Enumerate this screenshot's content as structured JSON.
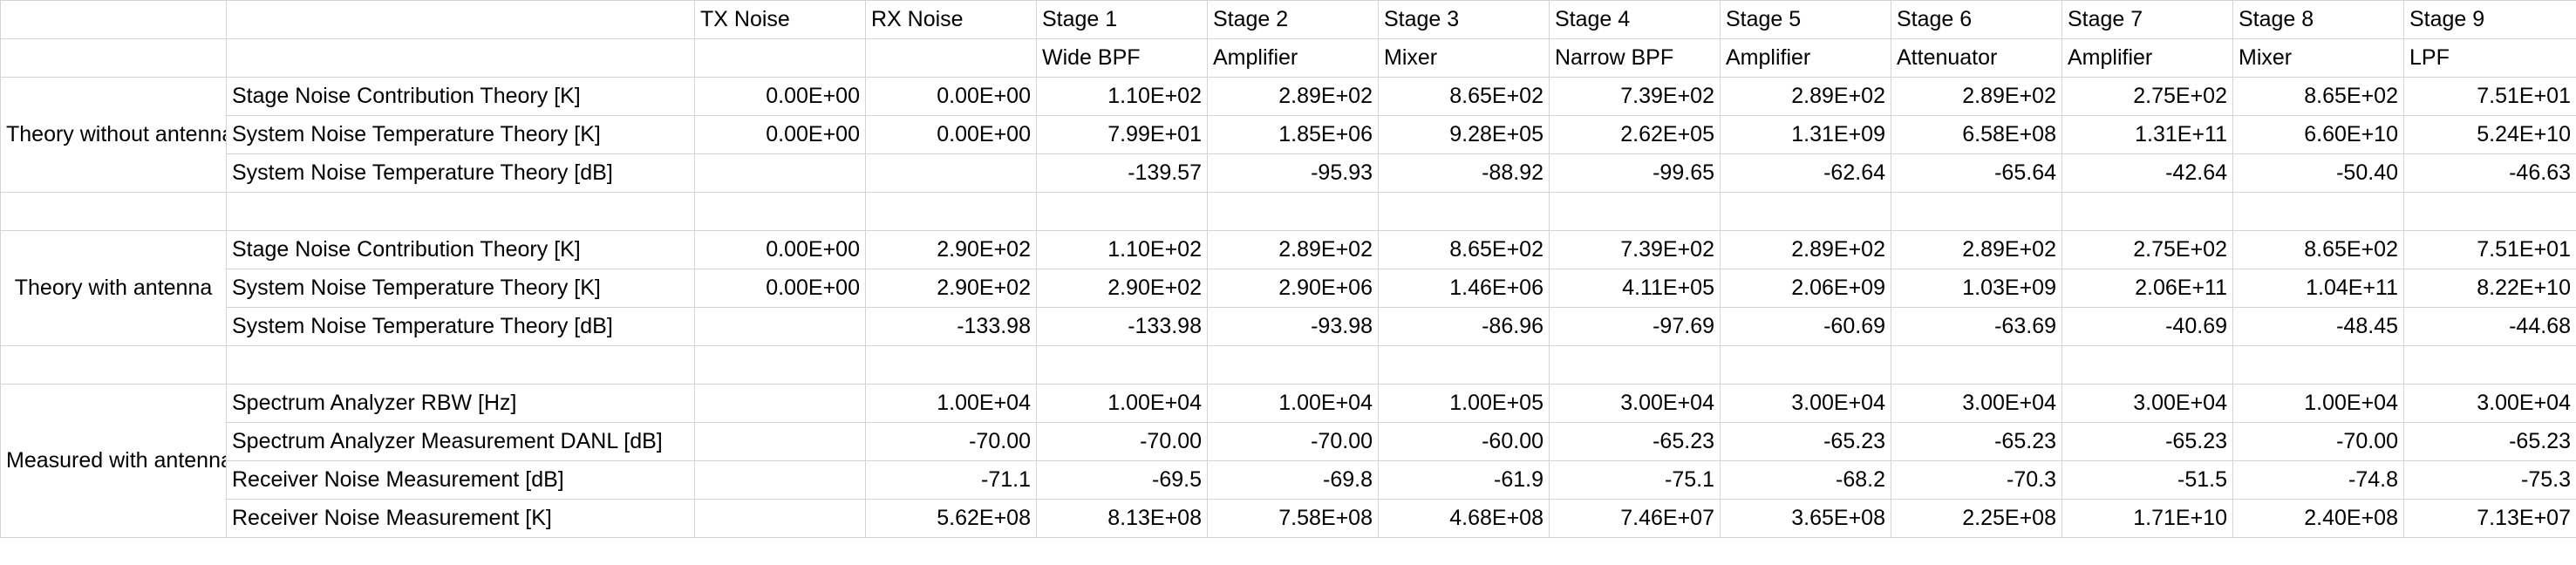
{
  "header": {
    "stages": [
      "TX Noise",
      "RX Noise",
      "Stage 1",
      "Stage 2",
      "Stage 3",
      "Stage 4",
      "Stage 5",
      "Stage 6",
      "Stage 7",
      "Stage 8",
      "Stage 9"
    ],
    "components": [
      "",
      "",
      "Wide BPF",
      "Amplifier",
      "Mixer",
      "Narrow BPF",
      "Amplifier",
      "Attenuator",
      "Amplifier",
      "Mixer",
      "LPF"
    ]
  },
  "sections": [
    {
      "group": "Theory without antenna",
      "rows": [
        {
          "label": "Stage Noise Contribution Theory [K]",
          "values": [
            "0.00E+00",
            "0.00E+00",
            "1.10E+02",
            "2.89E+02",
            "8.65E+02",
            "7.39E+02",
            "2.89E+02",
            "2.89E+02",
            "2.75E+02",
            "8.65E+02",
            "7.51E+01"
          ]
        },
        {
          "label": "System Noise Temperature Theory [K]",
          "values": [
            "0.00E+00",
            "0.00E+00",
            "7.99E+01",
            "1.85E+06",
            "9.28E+05",
            "2.62E+05",
            "1.31E+09",
            "6.58E+08",
            "1.31E+11",
            "6.60E+10",
            "5.24E+10"
          ]
        },
        {
          "label": "System Noise Temperature Theory [dB]",
          "values": [
            "",
            "",
            "-139.57",
            "-95.93",
            "-88.92",
            "-99.65",
            "-62.64",
            "-65.64",
            "-42.64",
            "-50.40",
            "-46.63"
          ]
        }
      ]
    },
    {
      "group": "Theory with antenna",
      "rows": [
        {
          "label": "Stage Noise Contribution Theory [K]",
          "values": [
            "0.00E+00",
            "2.90E+02",
            "1.10E+02",
            "2.89E+02",
            "8.65E+02",
            "7.39E+02",
            "2.89E+02",
            "2.89E+02",
            "2.75E+02",
            "8.65E+02",
            "7.51E+01"
          ]
        },
        {
          "label": "System Noise Temperature Theory [K]",
          "values": [
            "0.00E+00",
            "2.90E+02",
            "2.90E+02",
            "2.90E+06",
            "1.46E+06",
            "4.11E+05",
            "2.06E+09",
            "1.03E+09",
            "2.06E+11",
            "1.04E+11",
            "8.22E+10"
          ]
        },
        {
          "label": "System Noise Temperature Theory [dB]",
          "values": [
            "",
            "-133.98",
            "-133.98",
            "-93.98",
            "-86.96",
            "-97.69",
            "-60.69",
            "-63.69",
            "-40.69",
            "-48.45",
            "-44.68"
          ]
        }
      ]
    },
    {
      "group": "Measured with antenna",
      "rows": [
        {
          "label": "Spectrum Analyzer RBW [Hz]",
          "values": [
            "",
            "1.00E+04",
            "1.00E+04",
            "1.00E+04",
            "1.00E+05",
            "3.00E+04",
            "3.00E+04",
            "3.00E+04",
            "3.00E+04",
            "1.00E+04",
            "3.00E+04"
          ]
        },
        {
          "label": "Spectrum Analyzer Measurement DANL [dB]",
          "values": [
            "",
            "-70.00",
            "-70.00",
            "-70.00",
            "-60.00",
            "-65.23",
            "-65.23",
            "-65.23",
            "-65.23",
            "-70.00",
            "-65.23"
          ]
        },
        {
          "label": "Receiver Noise Measurement [dB]",
          "values": [
            "",
            "-71.1",
            "-69.5",
            "-69.8",
            "-61.9",
            "-75.1",
            "-68.2",
            "-70.3",
            "-51.5",
            "-74.8",
            "-75.3"
          ]
        },
        {
          "label": "Receiver Noise Measurement [K]",
          "values": [
            "",
            "5.62E+08",
            "8.13E+08",
            "7.58E+08",
            "4.68E+08",
            "7.46E+07",
            "3.65E+08",
            "2.25E+08",
            "1.71E+10",
            "2.40E+08",
            "7.13E+07"
          ]
        }
      ]
    }
  ]
}
